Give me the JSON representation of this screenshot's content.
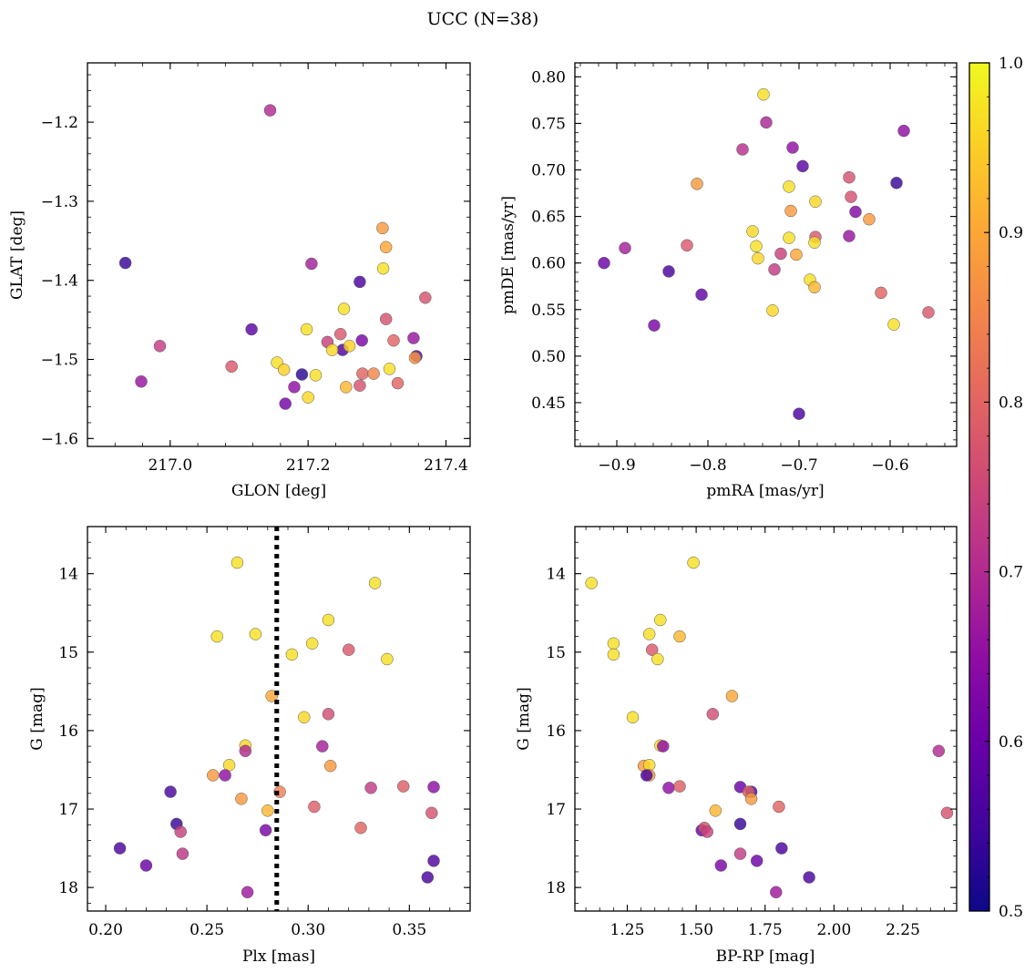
{
  "title": "UCC (N=38)",
  "colorbar": {
    "min": 0.5,
    "max": 1.0,
    "ticks": [
      "0.5",
      "0.6",
      "0.7",
      "0.8",
      "0.9",
      "1.0"
    ],
    "colormap": "plasma"
  },
  "chart_data": [
    {
      "type": "scatter",
      "id": "glon_glat",
      "xlabel": "GLON [deg]",
      "ylabel": "GLAT [deg]",
      "xlim": [
        216.88,
        217.435
      ],
      "ylim": [
        -1.61,
        -1.125
      ],
      "xticks": [
        217.0,
        217.2,
        217.4
      ],
      "xticklabels": [
        "217.0",
        "217.2",
        "217.4"
      ],
      "yticks": [
        -1.2,
        -1.3,
        -1.4,
        -1.5,
        -1.6
      ],
      "yticklabels": [
        "−1.2",
        "−1.3",
        "−1.4",
        "−1.5",
        "−1.6"
      ],
      "x": [
        217.145,
        216.935,
        217.205,
        217.308,
        217.313,
        217.309,
        217.275,
        217.37,
        217.252,
        217.118,
        217.198,
        217.313,
        217.353,
        217.357,
        216.985,
        217.247,
        217.228,
        217.25,
        217.278,
        217.324,
        217.235,
        217.26,
        216.958,
        217.089,
        217.155,
        217.165,
        217.191,
        217.211,
        217.279,
        217.295,
        217.318,
        217.33,
        217.355,
        217.255,
        217.275,
        217.18,
        217.2,
        217.167
      ],
      "y": [
        -1.185,
        -1.378,
        -1.379,
        -1.334,
        -1.358,
        -1.385,
        -1.402,
        -1.422,
        -1.436,
        -1.462,
        -1.462,
        -1.449,
        -1.473,
        -1.496,
        -1.483,
        -1.468,
        -1.478,
        -1.488,
        -1.476,
        -1.476,
        -1.488,
        -1.483,
        -1.528,
        -1.509,
        -1.504,
        -1.513,
        -1.519,
        -1.52,
        -1.518,
        -1.518,
        -1.512,
        -1.53,
        -1.498,
        -1.535,
        -1.533,
        -1.535,
        -1.548,
        -1.556
      ],
      "c": [
        0.7,
        0.54,
        0.68,
        0.88,
        0.9,
        0.97,
        0.56,
        0.77,
        0.97,
        0.58,
        0.97,
        0.77,
        0.66,
        0.56,
        0.73,
        0.78,
        0.74,
        0.57,
        0.62,
        0.8,
        0.96,
        0.95,
        0.66,
        0.78,
        0.97,
        0.95,
        0.53,
        0.97,
        0.8,
        0.85,
        0.97,
        0.8,
        0.88,
        0.92,
        0.77,
        0.65,
        0.96,
        0.61
      ]
    },
    {
      "type": "scatter",
      "id": "pmra_pmde",
      "xlabel": "pmRA [mas/yr]",
      "ylabel": "pmDE [mas/yr]",
      "xlim": [
        -0.946,
        -0.527
      ],
      "ylim": [
        0.403,
        0.815
      ],
      "xticks": [
        -0.9,
        -0.8,
        -0.7,
        -0.6
      ],
      "xticklabels": [
        "−0.9",
        "−0.8",
        "−0.7",
        "−0.6"
      ],
      "yticks": [
        0.45,
        0.5,
        0.55,
        0.6,
        0.65,
        0.7,
        0.75,
        0.8
      ],
      "yticklabels": [
        "0.45",
        "0.50",
        "0.55",
        "0.60",
        "0.65",
        "0.70",
        "0.75",
        "0.80"
      ],
      "x": [
        -0.739,
        -0.736,
        -0.762,
        -0.707,
        -0.585,
        -0.696,
        -0.645,
        -0.593,
        -0.812,
        -0.711,
        -0.643,
        -0.709,
        -0.682,
        -0.638,
        -0.623,
        -0.751,
        -0.682,
        -0.747,
        -0.683,
        -0.645,
        -0.711,
        -0.745,
        -0.823,
        -0.891,
        -0.72,
        -0.703,
        -0.914,
        -0.727,
        -0.688,
        -0.843,
        -0.683,
        -0.807,
        -0.61,
        -0.558,
        -0.729,
        -0.859,
        -0.596,
        -0.7
      ],
      "y": [
        0.781,
        0.751,
        0.722,
        0.724,
        0.742,
        0.704,
        0.692,
        0.686,
        0.685,
        0.682,
        0.671,
        0.656,
        0.666,
        0.655,
        0.647,
        0.634,
        0.628,
        0.618,
        0.622,
        0.629,
        0.627,
        0.605,
        0.619,
        0.616,
        0.61,
        0.609,
        0.6,
        0.593,
        0.582,
        0.591,
        0.574,
        0.566,
        0.568,
        0.547,
        0.549,
        0.533,
        0.534,
        0.438
      ],
      "c": [
        0.97,
        0.69,
        0.71,
        0.65,
        0.65,
        0.58,
        0.77,
        0.54,
        0.88,
        0.97,
        0.77,
        0.88,
        0.96,
        0.63,
        0.88,
        0.96,
        0.78,
        0.97,
        0.97,
        0.66,
        0.97,
        0.96,
        0.78,
        0.68,
        0.74,
        0.9,
        0.6,
        0.73,
        0.97,
        0.56,
        0.92,
        0.59,
        0.8,
        0.78,
        0.96,
        0.62,
        0.97,
        0.56
      ]
    },
    {
      "type": "scatter",
      "id": "plx_g",
      "xlabel": "Plx [mas]",
      "ylabel": "G [mag]",
      "xlim": [
        0.191,
        0.38
      ],
      "ylim": [
        18.3,
        13.4
      ],
      "xticks": [
        0.2,
        0.25,
        0.3,
        0.35
      ],
      "xticklabels": [
        "0.20",
        "0.25",
        "0.30",
        "0.35"
      ],
      "yticks": [
        14,
        15,
        16,
        17,
        18
      ],
      "yticklabels": [
        "14",
        "15",
        "16",
        "17",
        "18"
      ],
      "vline": {
        "x": 0.2845,
        "style": "dotted"
      },
      "x": [
        0.265,
        0.333,
        0.31,
        0.255,
        0.274,
        0.302,
        0.292,
        0.32,
        0.339,
        0.282,
        0.298,
        0.31,
        0.307,
        0.269,
        0.311,
        0.261,
        0.253,
        0.269,
        0.259,
        0.331,
        0.347,
        0.362,
        0.232,
        0.286,
        0.267,
        0.303,
        0.28,
        0.361,
        0.235,
        0.326,
        0.279,
        0.237,
        0.238,
        0.207,
        0.22,
        0.359,
        0.362,
        0.27
      ],
      "y": [
        13.86,
        14.12,
        14.59,
        14.8,
        14.77,
        14.89,
        15.03,
        14.97,
        15.09,
        15.56,
        15.83,
        15.79,
        16.2,
        16.19,
        16.45,
        16.44,
        16.57,
        16.26,
        16.57,
        16.73,
        16.71,
        16.72,
        16.78,
        16.78,
        16.87,
        16.97,
        17.02,
        17.05,
        17.19,
        17.24,
        17.27,
        17.29,
        17.57,
        17.5,
        17.72,
        17.87,
        17.66,
        18.06
      ],
      "c": [
        0.97,
        0.97,
        0.97,
        0.97,
        0.97,
        0.97,
        0.97,
        0.78,
        0.97,
        0.9,
        0.96,
        0.76,
        0.68,
        0.96,
        0.88,
        0.96,
        0.88,
        0.7,
        0.65,
        0.73,
        0.79,
        0.65,
        0.56,
        0.84,
        0.88,
        0.79,
        0.92,
        0.77,
        0.54,
        0.8,
        0.62,
        0.74,
        0.72,
        0.56,
        0.6,
        0.56,
        0.57,
        0.67
      ]
    },
    {
      "type": "scatter",
      "id": "bprp_g",
      "xlabel": "BP-RP [mag]",
      "ylabel": "G [mag]",
      "xlim": [
        1.06,
        2.445
      ],
      "ylim": [
        18.3,
        13.4
      ],
      "xticks": [
        1.25,
        1.5,
        1.75,
        2.0,
        2.25
      ],
      "xticklabels": [
        "1.25",
        "1.50",
        "1.75",
        "2.00",
        "2.25"
      ],
      "yticks": [
        14,
        15,
        16,
        17,
        18
      ],
      "yticklabels": [
        "14",
        "15",
        "16",
        "17",
        "18"
      ],
      "x": [
        1.49,
        1.12,
        1.37,
        1.2,
        1.33,
        1.44,
        1.2,
        1.34,
        1.36,
        1.63,
        1.27,
        1.56,
        1.37,
        1.38,
        1.31,
        1.33,
        1.33,
        1.32,
        2.38,
        1.4,
        1.44,
        1.66,
        1.7,
        1.69,
        1.7,
        1.57,
        1.8,
        2.41,
        1.66,
        1.52,
        1.53,
        1.54,
        1.66,
        1.81,
        1.59,
        1.72,
        1.79,
        1.91
      ],
      "y": [
        13.86,
        14.12,
        14.59,
        14.89,
        14.77,
        14.8,
        15.03,
        14.97,
        15.09,
        15.56,
        15.83,
        15.79,
        16.19,
        16.2,
        16.45,
        16.44,
        16.57,
        16.57,
        16.26,
        16.73,
        16.71,
        16.72,
        16.78,
        16.78,
        16.87,
        17.02,
        16.97,
        17.05,
        17.19,
        17.27,
        17.24,
        17.29,
        17.57,
        17.5,
        17.72,
        17.66,
        18.06,
        17.87
      ],
      "c": [
        0.97,
        0.97,
        0.97,
        0.97,
        0.97,
        0.92,
        0.97,
        0.78,
        0.97,
        0.9,
        0.97,
        0.76,
        0.96,
        0.65,
        0.88,
        0.96,
        0.88,
        0.56,
        0.7,
        0.65,
        0.79,
        0.6,
        0.56,
        0.79,
        0.88,
        0.92,
        0.8,
        0.77,
        0.54,
        0.6,
        0.77,
        0.74,
        0.73,
        0.56,
        0.62,
        0.6,
        0.67,
        0.56
      ]
    }
  ]
}
